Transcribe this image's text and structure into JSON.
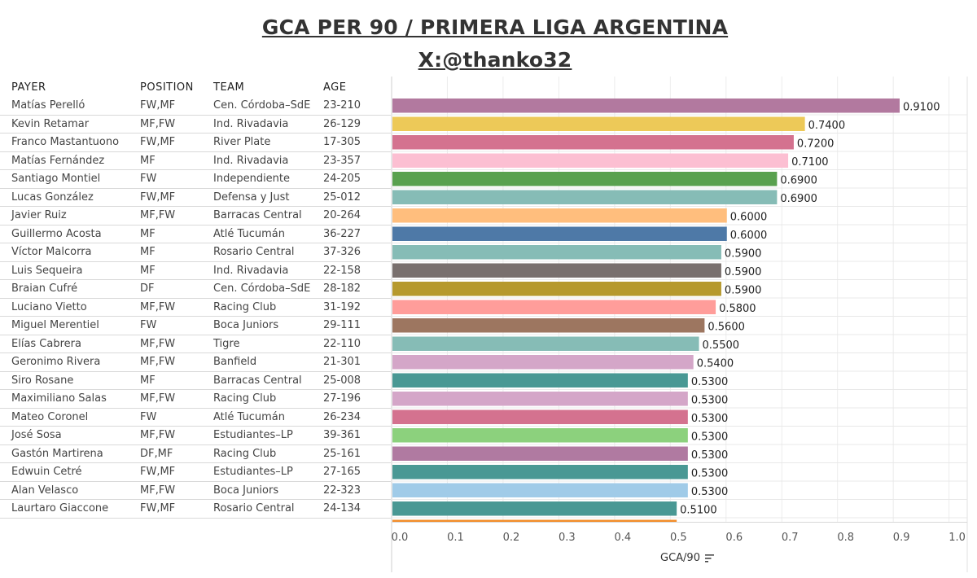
{
  "title": "GCA PER 90 / PRIMERA LIGA ARGENTINA",
  "subtitle": "X:@thanko32",
  "table": {
    "headers": [
      "PAYER",
      "POSITION",
      "TEAM",
      "AGE"
    ],
    "rows": [
      {
        "player": "Matías Perelló",
        "position": "FW,MF",
        "team": "Cen. Córdoba–SdE",
        "age": "23-210"
      },
      {
        "player": "Kevin Retamar",
        "position": "MF,FW",
        "team": "Ind. Rivadavia",
        "age": "26-129"
      },
      {
        "player": "Franco Mastantuono",
        "position": "FW,MF",
        "team": "River Plate",
        "age": "17-305"
      },
      {
        "player": "Matías Fernández",
        "position": "MF",
        "team": "Ind. Rivadavia",
        "age": "23-357"
      },
      {
        "player": "Santiago Montiel",
        "position": "FW",
        "team": "Independiente",
        "age": "24-205"
      },
      {
        "player": "Lucas González",
        "position": "FW,MF",
        "team": "Defensa y Just",
        "age": "25-012"
      },
      {
        "player": "Javier Ruiz",
        "position": "MF,FW",
        "team": "Barracas Central",
        "age": "20-264"
      },
      {
        "player": "Guillermo Acosta",
        "position": "MF",
        "team": "Atlé Tucumán",
        "age": "36-227"
      },
      {
        "player": "Víctor Malcorra",
        "position": "MF",
        "team": "Rosario Central",
        "age": "37-326"
      },
      {
        "player": "Luis Sequeira",
        "position": "MF",
        "team": "Ind. Rivadavia",
        "age": "22-158"
      },
      {
        "player": "Braian Cufré",
        "position": "DF",
        "team": "Cen. Córdoba–SdE",
        "age": "28-182"
      },
      {
        "player": "Luciano Vietto",
        "position": "MF,FW",
        "team": "Racing Club",
        "age": "31-192"
      },
      {
        "player": "Miguel Merentiel",
        "position": "FW",
        "team": "Boca Juniors",
        "age": "29-111"
      },
      {
        "player": "Elías Cabrera",
        "position": "MF,FW",
        "team": "Tigre",
        "age": "22-110"
      },
      {
        "player": "Geronimo Rivera",
        "position": "MF,FW",
        "team": "Banfield",
        "age": "21-301"
      },
      {
        "player": "Siro Rosane",
        "position": "MF",
        "team": "Barracas Central",
        "age": "25-008"
      },
      {
        "player": "Maximiliano Salas",
        "position": "MF,FW",
        "team": "Racing Club",
        "age": "27-196"
      },
      {
        "player": "Mateo Coronel",
        "position": "FW",
        "team": "Atlé Tucumán",
        "age": "26-234"
      },
      {
        "player": "José Sosa",
        "position": "MF,FW",
        "team": "Estudiantes–LP",
        "age": "39-361"
      },
      {
        "player": "Gastón Martirena",
        "position": "DF,MF",
        "team": "Racing Club",
        "age": "25-161"
      },
      {
        "player": "Edwuin Cetré",
        "position": "FW,MF",
        "team": "Estudiantes–LP",
        "age": "27-165"
      },
      {
        "player": "Alan Velasco",
        "position": "MF,FW",
        "team": "Boca Juniors",
        "age": "22-323"
      },
      {
        "player": "Laurtaro Giaccone",
        "position": "FW,MF",
        "team": "Rosario Central",
        "age": "24-134"
      }
    ]
  },
  "chart_data": {
    "type": "bar",
    "orientation": "horizontal",
    "xlabel": "GCA/90",
    "xlim": [
      0,
      1.0
    ],
    "xticks": [
      "0.0",
      "0.1",
      "0.2",
      "0.3",
      "0.4",
      "0.5",
      "0.6",
      "0.7",
      "0.8",
      "0.9",
      "1.0"
    ],
    "grid": true,
    "categories": [
      "Matías Perelló",
      "Kevin Retamar",
      "Franco Mastantuono",
      "Matías Fernández",
      "Santiago Montiel",
      "Lucas González",
      "Javier Ruiz",
      "Guillermo Acosta",
      "Víctor Malcorra",
      "Luis Sequeira",
      "Braian Cufré",
      "Luciano Vietto",
      "Miguel Merentiel",
      "Elías Cabrera",
      "Geronimo Rivera",
      "Siro Rosane",
      "Maximiliano Salas",
      "Mateo Coronel",
      "José Sosa",
      "Gastón Martirena",
      "Edwuin Cetré",
      "Alan Velasco",
      "Laurtaro Giaccone"
    ],
    "values": [
      0.91,
      0.74,
      0.72,
      0.71,
      0.69,
      0.69,
      0.6,
      0.6,
      0.59,
      0.59,
      0.59,
      0.58,
      0.56,
      0.55,
      0.54,
      0.53,
      0.53,
      0.53,
      0.53,
      0.53,
      0.53,
      0.53,
      0.51
    ],
    "labels": [
      "0.9100",
      "0.7400",
      "0.7200",
      "0.7100",
      "0.6900",
      "0.6900",
      "0.6000",
      "0.6000",
      "0.5900",
      "0.5900",
      "0.5900",
      "0.5800",
      "0.5600",
      "0.5500",
      "0.5400",
      "0.5300",
      "0.5300",
      "0.5300",
      "0.5300",
      "0.5300",
      "0.5300",
      "0.5300",
      "0.5100"
    ],
    "colors": [
      "#b2799f",
      "#edc958",
      "#d4728f",
      "#fcbfd2",
      "#59a14f",
      "#86bcb6",
      "#ffbe7d",
      "#4e79a7",
      "#86bcb6",
      "#79706e",
      "#b6992d",
      "#ff9d9a",
      "#9d7660",
      "#86bcb6",
      "#d4a6c8",
      "#499894",
      "#d4a6c8",
      "#d4728f",
      "#8cd17d",
      "#b07aa1",
      "#499894",
      "#a0cbe8",
      "#499894"
    ],
    "partial_bar_color": "#f28e2b"
  },
  "icons": {
    "sort": "sort-descending-icon"
  }
}
